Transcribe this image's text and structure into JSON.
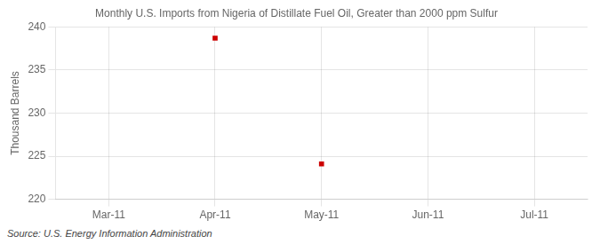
{
  "chart_data": {
    "type": "scatter",
    "title": "Monthly U.S. Imports from Nigeria of Distillate Fuel Oil, Greater than 2000 ppm Sulfur",
    "y_label": "Thousand Barrels",
    "annotation": "Source: U.S. Energy Information Administration",
    "categories": [
      "Mar-11",
      "Apr-11",
      "May-11",
      "Jun-11",
      "Jul-11"
    ],
    "values": [
      null,
      238.7,
      224.1,
      null,
      null
    ],
    "color": "#CC0000",
    "marker": "square",
    "ylim": [
      220,
      240
    ],
    "yticks": [
      220,
      225,
      230,
      235,
      240
    ],
    "grid": true
  }
}
